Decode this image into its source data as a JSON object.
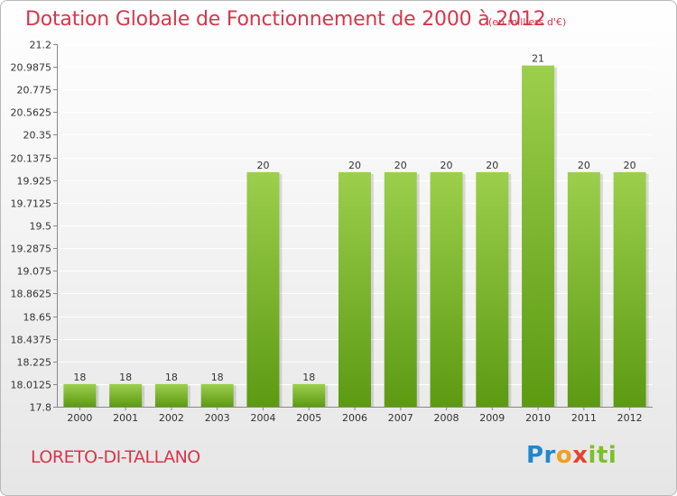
{
  "header": {
    "title": "Dotation Globale de Fonctionnement de 2000 à 2012",
    "subtitle": "(en milliers d'€)"
  },
  "footer": {
    "commune": "LORETO-DI-TALLANO",
    "brand": [
      "Pr",
      "o",
      "x",
      "iti"
    ]
  },
  "colors": {
    "title": "#d5374b",
    "bar_top": "#9ccf4c",
    "bar_bottom": "#5c9a12",
    "grid": "#ffffff",
    "background_top": "#ffffff",
    "background_bottom": "#e6e6e6"
  },
  "chart_data": {
    "type": "bar",
    "title": "Dotation Globale de Fonctionnement de 2000 à 2012",
    "subtitle": "(en milliers d'€)",
    "xlabel": "",
    "ylabel": "",
    "categories": [
      "2000",
      "2001",
      "2002",
      "2003",
      "2004",
      "2005",
      "2006",
      "2007",
      "2008",
      "2009",
      "2010",
      "2011",
      "2012"
    ],
    "values": [
      18,
      18,
      18,
      18,
      20,
      18,
      20,
      20,
      20,
      20,
      21,
      20,
      20
    ],
    "labels": [
      "18",
      "18",
      "18",
      "18",
      "20",
      "18",
      "20",
      "20",
      "20",
      "20",
      "21",
      "20",
      "20"
    ],
    "bar_heights_data": [
      18.0125,
      18.0125,
      18.0125,
      18.0125,
      20,
      18.0125,
      20,
      20,
      20,
      20,
      21,
      20,
      20
    ],
    "ylim": [
      17.8,
      21.2
    ],
    "yticks": [
      17.8,
      18.0125,
      18.225,
      18.4375,
      18.65,
      18.8625,
      19.075,
      19.2875,
      19.5,
      19.7125,
      19.925,
      20.1375,
      20.35,
      20.5625,
      20.775,
      20.9875,
      21.2
    ],
    "ytick_labels": [
      "17.8",
      "18.0125",
      "18.225",
      "18.4375",
      "18.65",
      "18.8625",
      "19.075",
      "19.2875",
      "19.5",
      "19.7125",
      "19.925",
      "20.1375",
      "20.35",
      "20.5625",
      "20.775",
      "20.9875",
      "21.2"
    ],
    "grid": true,
    "legend": "none"
  }
}
